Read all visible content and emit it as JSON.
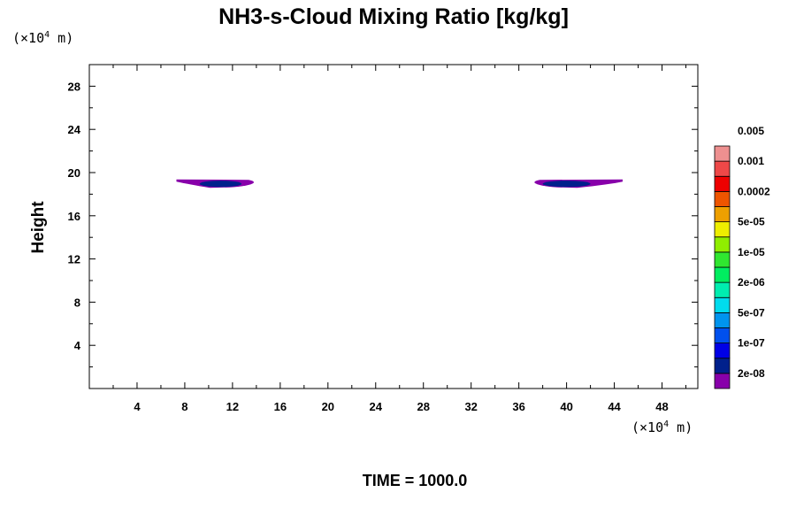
{
  "chart_data": {
    "type": "contour",
    "title": "NH3-s-Cloud Mixing Ratio [kg/kg]",
    "ylabel": "Height",
    "x_unit": {
      "prefix": "(×10",
      "exp": "4",
      "suffix": " m)"
    },
    "y_unit": {
      "prefix": "(×10",
      "exp": "4",
      "suffix": " m)"
    },
    "xlim": [
      0,
      51
    ],
    "ylim": [
      0,
      30
    ],
    "x_ticks": [
      4,
      8,
      12,
      16,
      20,
      24,
      28,
      32,
      36,
      40,
      44,
      48
    ],
    "y_ticks": [
      4,
      8,
      12,
      16,
      20,
      24,
      28
    ],
    "grid": false,
    "colorbar": {
      "colors": [
        "#8800aa",
        "#00208c",
        "#0000e6",
        "#0050ee",
        "#0094ee",
        "#00dcee",
        "#00eeb0",
        "#00ee60",
        "#30e630",
        "#90ee00",
        "#eeee00",
        "#eea000",
        "#ee5500",
        "#ee0000",
        "#ee4848",
        "#ee9090"
      ],
      "labels": [
        "2e-08",
        "1e-07",
        "5e-07",
        "2e-06",
        "1e-05",
        "5e-05",
        "0.0002",
        "0.001",
        "0.005"
      ]
    },
    "features": [
      {
        "name": "left-cloud",
        "x_range": [
          7.3,
          13.8
        ],
        "y_center": 19.0,
        "peak_x": 11.0
      },
      {
        "name": "right-cloud",
        "x_range": [
          37.3,
          44.7
        ],
        "y_center": 19.0,
        "peak_x": 40.0
      }
    ],
    "footer": "TIME = 1000.0"
  }
}
